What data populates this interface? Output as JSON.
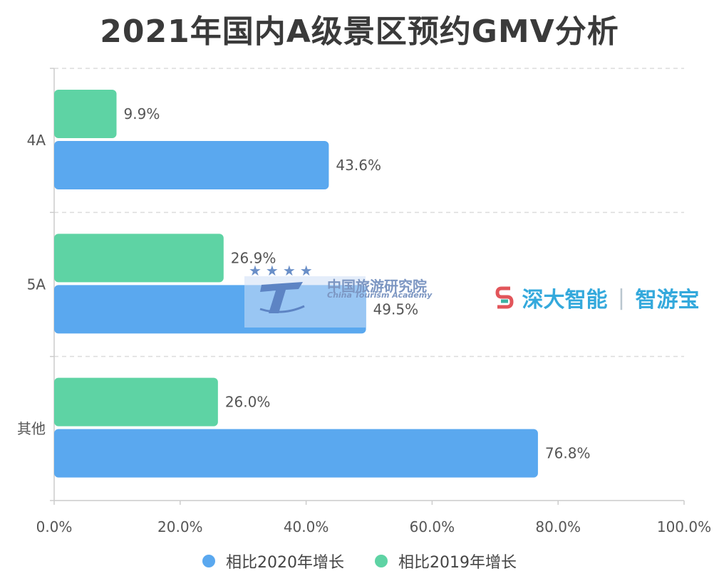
{
  "title": "2021年国内A级景区预约GMV分析",
  "chart_data": {
    "type": "bar",
    "orientation": "horizontal",
    "categories": [
      "4A",
      "5A",
      "其他"
    ],
    "series": [
      {
        "name": "相比2020年增长",
        "color": "#5aa8ef",
        "values": [
          43.6,
          49.5,
          76.8
        ],
        "labels": [
          "43.6%",
          "49.5%",
          "76.8%"
        ]
      },
      {
        "name": "相比2019年增长",
        "color": "#5ed3a4",
        "values": [
          9.9,
          26.9,
          26.0
        ],
        "labels": [
          "9.9%",
          "26.9%",
          "26.0%"
        ]
      }
    ],
    "xlim": [
      0,
      100
    ],
    "xticks": [
      "0.0%",
      "20.0%",
      "40.0%",
      "60.0%",
      "80.0%",
      "100.0%"
    ],
    "grid": "horizontal-dashed",
    "legend_position": "bottom"
  },
  "legend": [
    {
      "label": "相比2020年增长",
      "color": "#5aa8ef"
    },
    {
      "label": "相比2019年增长",
      "color": "#5ed3a4"
    }
  ],
  "watermarks": {
    "academy_cn": "中国旅游研究院",
    "academy_en": "China Tourism Academy",
    "brand_name": "深大智能",
    "brand_product": "智游宝"
  }
}
